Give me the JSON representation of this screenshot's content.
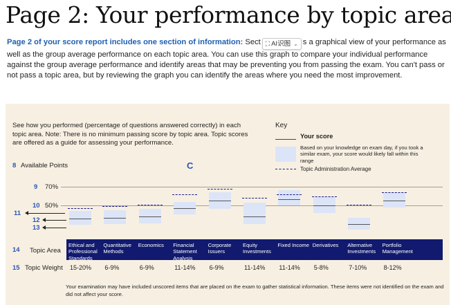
{
  "title": "Page 2: Your performance by topic area",
  "intro": {
    "lead": "Page 2 of your score report includes one section of information:",
    "text_before_chip": " Sect",
    "chip": {
      "icon": "scan-icon",
      "label": "AI识图"
    },
    "text_after_chip": "s a graphical view of your performance as well as the group average performance on each topic area. You can use this graph to compare your individual performance against the group average performance and identify areas that may be preventing you from passing the exam. You can't pass or not pass a topic area, but by reviewing the graph you can identify the areas where you need the most improvement."
  },
  "report": {
    "instructions": "See how you performed (percentage of questions answered correctly) in each topic area. Note: There is no minimum passing score by topic area. Topic scores are offered as a guide for assessing your performance.",
    "key": {
      "title": "Key",
      "score_label": "Your score",
      "range_desc": "Based on your knowledge on exam day, if you took a similar exam, your score would likely fall within this range",
      "avg_label": "Topic Administration Average"
    },
    "callouts": {
      "n8": "8",
      "n10": "10",
      "n11": "11",
      "n12": "12",
      "n13": "13",
      "n14": "14",
      "n15": "15",
      "c": "C"
    },
    "available_points": "Available Points",
    "tick_70": "70%",
    "tick_50": "50%",
    "topic_area_label": "Topic Area",
    "topic_weight_label": "Topic Weight",
    "footnote": "Your examination may have included unscored items that are placed on the exam to gather statistical information. These items were not identified on the exam and did not affect your score."
  },
  "chart_data": {
    "type": "bar",
    "categories": [
      "Ethical and Professional Standards",
      "Quantitative Methods",
      "Economics",
      "Financial Statement Analysis",
      "Corporate Issuers",
      "Equity Investments",
      "Fixed Income",
      "Derivatives",
      "Alternative Investments",
      "Portfolio Management"
    ],
    "weights": [
      "15-20%",
      "6-9%",
      "6-9%",
      "11-14%",
      "6-9%",
      "11-14%",
      "11-14%",
      "5-8%",
      "7-10%",
      "8-12%"
    ],
    "series": [
      {
        "name": "Your score",
        "values": [
          36,
          37,
          38,
          47,
          55,
          38,
          57,
          50,
          30,
          55
        ]
      },
      {
        "name": "Topic Administration Average",
        "values": [
          47,
          49,
          51,
          62,
          68,
          58,
          62,
          60,
          51,
          64
        ]
      }
    ],
    "range_low": [
      29,
      30,
      31,
      40,
      46,
      30,
      50,
      42,
      24,
      48
    ],
    "range_high": [
      44,
      45,
      46,
      54,
      64,
      53,
      66,
      60,
      37,
      64
    ],
    "ylim": [
      20,
      75
    ],
    "reference_lines": [
      70,
      50
    ],
    "grid": false
  },
  "colors": {
    "band": "#111a6e",
    "range": "#dce4f7",
    "panel": "#f7f0e2",
    "callout": "#2a56b3",
    "average": "#1a1a8a"
  }
}
